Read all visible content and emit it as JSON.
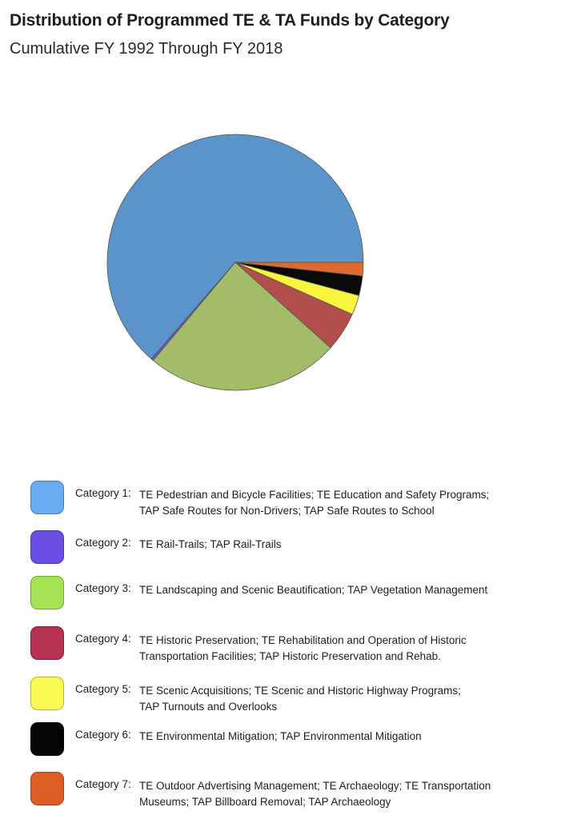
{
  "title": "Distribution of Programmed TE & TA Funds by Category",
  "subtitle": "Cumulative FY 1992 Through FY 2018",
  "chart_data": {
    "type": "pie",
    "title": "Distribution of Programmed TE & TA Funds by Category",
    "subtitle": "Cumulative FY 1992 Through FY 2018",
    "slices": [
      {
        "category": "Category 1",
        "value": 64.0,
        "color": "#5b93cb"
      },
      {
        "category": "Category 2",
        "value": 0.3,
        "color": "#6a55d6"
      },
      {
        "category": "Category 3",
        "value": 24.6,
        "color": "#a3bc67"
      },
      {
        "category": "Category 4",
        "value": 5.0,
        "color": "#b24e4c"
      },
      {
        "category": "Category 5",
        "value": 2.5,
        "color": "#f9f43e"
      },
      {
        "category": "Category 6",
        "value": 2.5,
        "color": "#0a0a0a"
      },
      {
        "category": "Category 7",
        "value": 1.7,
        "color": "#dd6a2e"
      }
    ],
    "legend": "bottom"
  },
  "legend": [
    {
      "category": "Category 1:",
      "lines": [
        "TE Pedestrian and Bicycle Facilities; TE Education and Safety Programs;",
        "TAP Safe Routes for Non-Drivers; TAP Safe Routes to School"
      ],
      "color": "#6aacf2"
    },
    {
      "category": "Category 2:",
      "lines": [
        "TE Rail-Trails; TAP Rail-Trails"
      ],
      "color": "#6b4ee4"
    },
    {
      "category": "Category 3:",
      "lines": [
        "TE Landscaping and Scenic Beautification; TAP Vegetation Management"
      ],
      "color": "#a5e354"
    },
    {
      "category": "Category 4:",
      "lines": [
        "TE Historic Preservation; TE Rehabilitation and Operation of Historic",
        "Transportation Facilities; TAP Historic Preservation and Rehab."
      ],
      "color": "#b53250"
    },
    {
      "category": "Category 5:",
      "lines": [
        "TE Scenic Acquisitions; TE Scenic and Historic Highway Programs;",
        "TAP Turnouts and Overlooks"
      ],
      "color": "#fbfa52"
    },
    {
      "category": "Category 6:",
      "lines": [
        "TE Environmental Mitigation; TAP Environmental Mitigation"
      ],
      "color": "#050505"
    },
    {
      "category": "Category 7:",
      "lines": [
        "TE Outdoor Advertising Management; TE Archaeology; TE Transportation",
        "Museums; TAP Billboard Removal; TAP Archaeology"
      ],
      "color": "#dc5e26"
    }
  ]
}
